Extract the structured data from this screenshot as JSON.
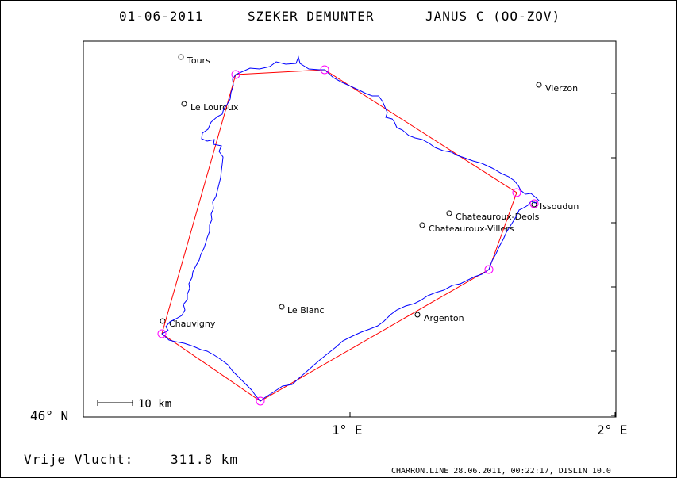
{
  "title": {
    "date": "01-06-2011",
    "pilot": "SZEKER DEMUNTER",
    "glider": "JANUS C (OO-ZOV)"
  },
  "axes": {
    "lat_label": "46° N",
    "lon_labels": [
      "1° E",
      "2° E"
    ]
  },
  "scale_bar": {
    "label": "10 km"
  },
  "distance": {
    "label": "Vrije Vlucht:",
    "value": "311.8 km"
  },
  "footer": {
    "text": "CHARRON.LINE 28.06.2011, 00:22:17, DISLIN 10.0"
  },
  "colors": {
    "track": "#0000ff",
    "task": "#ff0000",
    "turnpoint": "#ff00ff",
    "frame": "#000000"
  },
  "places": [
    {
      "name": "Tours"
    },
    {
      "name": "Le Louroux"
    },
    {
      "name": "Vierzon"
    },
    {
      "name": "Issoudun"
    },
    {
      "name": "Chateauroux-Deols"
    },
    {
      "name": "Chateauroux-Villers"
    },
    {
      "name": "Le Blanc"
    },
    {
      "name": "Argenton"
    },
    {
      "name": "Chauvigny"
    }
  ]
}
